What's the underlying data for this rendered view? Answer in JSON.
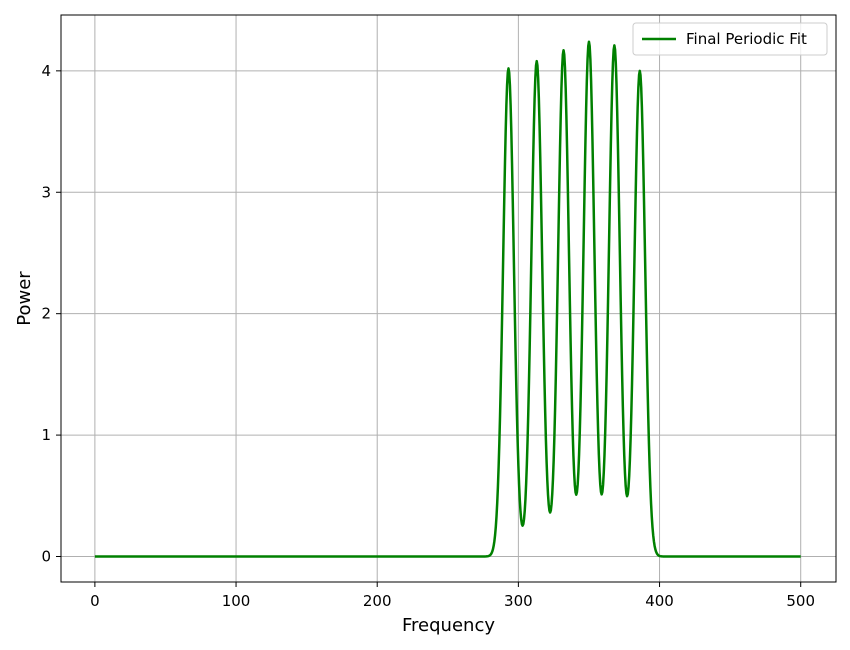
{
  "chart_data": {
    "type": "line",
    "title": "",
    "xlabel": "Frequency",
    "ylabel": "Power",
    "xlim": [
      -24,
      525
    ],
    "ylim": [
      -0.21,
      4.46
    ],
    "xticks": [
      0,
      100,
      200,
      300,
      400,
      500
    ],
    "yticks": [
      0,
      1,
      2,
      3,
      4
    ],
    "grid": true,
    "legend": {
      "position": "top-right",
      "entries": [
        "Final Periodic Fit"
      ]
    },
    "colors": {
      "series": "#008000",
      "grid": "#b0b0b0",
      "axes": "#000000"
    },
    "series": [
      {
        "name": "Final Periodic Fit",
        "color": "#008000",
        "baseline": 0,
        "x_range": [
          0,
          500
        ],
        "peaks": [
          {
            "center": 293,
            "height": 4.02,
            "sigma": 3.8
          },
          {
            "center": 313,
            "height": 4.08,
            "sigma": 3.8
          },
          {
            "center": 332,
            "height": 4.17,
            "sigma": 3.8
          },
          {
            "center": 350,
            "height": 4.24,
            "sigma": 3.8
          },
          {
            "center": 368,
            "height": 4.21,
            "sigma": 3.8
          },
          {
            "center": 386,
            "height": 4.0,
            "sigma": 3.8
          }
        ]
      }
    ]
  }
}
